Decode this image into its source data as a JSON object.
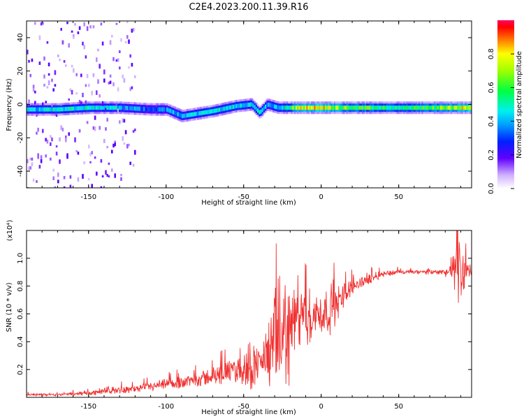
{
  "title": "C2E4.2023.200.11.39.R16",
  "chart_data": [
    {
      "type": "heatmap",
      "xlabel": "Height of straight line (km)",
      "ylabel": "Frequency (Hz)",
      "xlim": [
        -190,
        97
      ],
      "ylim": [
        -50,
        50
      ],
      "x_ticks": [
        -150,
        -100,
        -50,
        0,
        50
      ],
      "y_ticks": [
        -40,
        -20,
        0,
        20,
        40
      ],
      "colorbar": {
        "label": "Normalized spectral amplitude",
        "range": [
          0,
          1
        ],
        "ticks": [
          "0.0",
          "0.2",
          "0.4",
          "0.6",
          "0.8"
        ]
      },
      "ridge": {
        "x": [
          -190,
          -170,
          -150,
          -130,
          -110,
          -100,
          -90,
          -70,
          -55,
          -45,
          -40,
          -35,
          -28,
          -22,
          -15,
          0,
          20,
          50,
          80,
          97
        ],
        "frequency": [
          -3,
          -3,
          -2,
          -2,
          -3,
          -3,
          -7,
          -4,
          -1,
          0,
          -5,
          0,
          -2,
          -2,
          -2,
          -2,
          -2,
          -2,
          -2,
          -2
        ],
        "amplitude": [
          0.45,
          0.5,
          0.5,
          0.45,
          0.35,
          0.4,
          0.45,
          0.5,
          0.5,
          0.45,
          0.5,
          0.4,
          0.45,
          0.55,
          0.8,
          0.85,
          0.65,
          0.55,
          0.7,
          0.85
        ]
      }
    },
    {
      "type": "line",
      "xlabel": "Height of straight line (km)",
      "ylabel": "SNR (10 * v/v)",
      "y_multiplier": "(x10⁴)",
      "xlim": [
        -190,
        97
      ],
      "ylim": [
        0,
        1.2
      ],
      "x_ticks": [
        -150,
        -100,
        -50,
        0,
        50
      ],
      "y_ticks": [
        "0.2",
        "0.4",
        "0.6",
        "0.8",
        "1.0"
      ],
      "color": "#f03030",
      "series": [
        {
          "x": [
            -190,
            -170,
            -150,
            -135,
            -120,
            -100,
            -85,
            -70,
            -60,
            -50,
            -45,
            -40,
            -35,
            -30,
            -25,
            -20,
            -15,
            -10,
            0,
            10,
            15,
            20,
            25,
            30,
            40,
            50,
            60,
            70,
            80,
            85,
            90,
            95,
            97
          ],
          "y": [
            0.02,
            0.02,
            0.03,
            0.05,
            0.06,
            0.09,
            0.12,
            0.15,
            0.18,
            0.2,
            0.24,
            0.25,
            0.3,
            0.4,
            0.45,
            0.5,
            0.55,
            0.57,
            0.6,
            0.65,
            0.75,
            0.8,
            0.82,
            0.85,
            0.89,
            0.9,
            0.9,
            0.9,
            0.9,
            0.91,
            0.92,
            0.9,
            0.91
          ],
          "band": [
            0.01,
            0.01,
            0.02,
            0.03,
            0.03,
            0.05,
            0.06,
            0.08,
            0.1,
            0.14,
            0.25,
            0.12,
            0.25,
            0.45,
            0.5,
            0.45,
            0.25,
            0.25,
            0.2,
            0.2,
            0.1,
            0.07,
            0.06,
            0.05,
            0.03,
            0.02,
            0.02,
            0.02,
            0.03,
            0.15,
            0.3,
            0.08,
            0.05
          ]
        }
      ]
    }
  ]
}
